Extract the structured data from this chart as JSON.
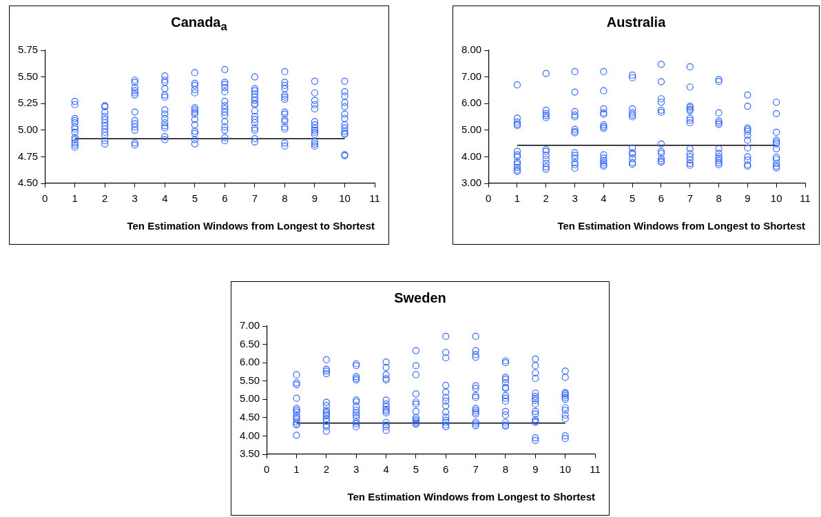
{
  "chart_data": [
    {
      "type": "scatter",
      "title": "Canada$_{a}$",
      "xlabel": "Ten Estimation Windows from Longest to Shortest",
      "xlim": [
        0,
        11
      ],
      "xticks": [
        0,
        1,
        2,
        3,
        4,
        5,
        6,
        7,
        8,
        9,
        10,
        11
      ],
      "ylim": [
        4.5,
        5.75
      ],
      "yticks": [
        {
          "value": 4.5,
          "label": "4.50"
        },
        {
          "value": 4.75,
          "label": "4.75"
        },
        {
          "value": 5,
          "label": "5.00"
        },
        {
          "value": 5.25,
          "label": "5.25"
        },
        {
          "value": 5.5,
          "label": "5.50"
        },
        {
          "value": 5.75,
          "label": "5.75"
        }
      ],
      "grid": false,
      "legend": false,
      "marker": "circle",
      "series": [
        {
          "color": "#3366ff",
          "x": [
            1,
            1,
            1,
            1,
            1,
            1,
            1,
            1,
            1,
            1,
            1,
            1,
            1,
            2,
            2,
            2,
            2,
            2,
            2,
            2,
            2,
            2,
            2,
            2,
            2,
            3,
            3,
            3,
            3,
            3,
            3,
            3,
            3,
            3,
            3,
            3,
            3,
            3,
            4,
            4,
            4,
            4,
            4,
            4,
            4,
            4,
            4,
            4,
            4,
            4,
            4,
            4,
            5,
            5,
            5,
            5,
            5,
            5,
            5,
            5,
            5,
            5,
            5,
            5,
            5,
            5,
            5,
            6,
            6,
            6,
            6,
            6,
            6,
            6,
            6,
            6,
            6,
            6,
            6,
            6,
            6,
            6,
            7,
            7,
            7,
            7,
            7,
            7,
            7,
            7,
            7,
            7,
            7,
            7,
            7,
            7,
            7,
            7,
            8,
            8,
            8,
            8,
            8,
            8,
            8,
            8,
            8,
            8,
            8,
            8,
            8,
            8,
            8,
            9,
            9,
            9,
            9,
            9,
            9,
            9,
            9,
            9,
            9,
            9,
            9,
            9,
            9,
            10,
            10,
            10,
            10,
            10,
            10,
            10,
            10,
            10,
            10,
            10,
            10,
            10,
            10
          ],
          "values": [
            5.27,
            5.24,
            5.11,
            5.09,
            5.07,
            5.03,
            5.01,
            4.98,
            4.93,
            4.91,
            4.88,
            4.86,
            4.84,
            5.23,
            5.22,
            5.17,
            5.13,
            5.1,
            5.07,
            5.04,
            5.01,
            4.98,
            4.95,
            4.9,
            4.87,
            5.47,
            5.45,
            5.4,
            5.37,
            5.35,
            5.33,
            5.17,
            5.09,
            5.06,
            5.03,
            5.0,
            4.88,
            4.86,
            5.51,
            5.47,
            5.45,
            5.39,
            5.33,
            5.31,
            5.19,
            5.15,
            5.11,
            5.07,
            5.04,
            5.02,
            4.94,
            4.91,
            5.54,
            5.44,
            5.42,
            5.38,
            5.35,
            5.21,
            5.19,
            5.17,
            5.15,
            5.1,
            5.05,
            4.99,
            4.97,
            4.91,
            4.87,
            5.57,
            5.45,
            5.43,
            5.4,
            5.36,
            5.27,
            5.23,
            5.2,
            5.17,
            5.14,
            5.08,
            5.03,
            5.0,
            4.93,
            4.9,
            5.5,
            5.39,
            5.37,
            5.34,
            5.31,
            5.28,
            5.25,
            5.24,
            5.18,
            5.13,
            5.1,
            5.07,
            5.02,
            5.0,
            4.92,
            4.89,
            5.55,
            5.45,
            5.42,
            5.39,
            5.33,
            5.31,
            5.29,
            5.17,
            5.15,
            5.1,
            5.08,
            5.03,
            5.01,
            4.88,
            4.85,
            5.46,
            5.35,
            5.28,
            5.24,
            5.2,
            5.08,
            5.05,
            5.02,
            5.0,
            4.98,
            4.96,
            4.89,
            4.87,
            4.85,
            5.46,
            5.36,
            5.32,
            5.26,
            5.22,
            5.15,
            5.11,
            5.05,
            5.02,
            4.99,
            4.97,
            4.96,
            4.77,
            4.76
          ]
        },
        {
          "type": "line",
          "marker": "none",
          "color": "#000000",
          "x": [
            1,
            10
          ],
          "values": [
            4.92,
            4.92
          ]
        }
      ]
    },
    {
      "type": "scatter",
      "title": "Australia",
      "xlabel": "Ten Estimation Windows from Longest to Shortest",
      "xlim": [
        0,
        11
      ],
      "xticks": [
        0,
        1,
        2,
        3,
        4,
        5,
        6,
        7,
        8,
        9,
        10,
        11
      ],
      "ylim": [
        3,
        8
      ],
      "yticks": [
        {
          "value": 3,
          "label": "3.00"
        },
        {
          "value": 4,
          "label": "4.00"
        },
        {
          "value": 5,
          "label": "5.00"
        },
        {
          "value": 6,
          "label": "6.00"
        },
        {
          "value": 7,
          "label": "7.00"
        },
        {
          "value": 8,
          "label": "8.00"
        }
      ],
      "grid": false,
      "legend": false,
      "marker": "circle",
      "series": [
        {
          "color": "#3366ff",
          "x": [
            1,
            1,
            1,
            1,
            1,
            1,
            1,
            1,
            1,
            1,
            1,
            1,
            1,
            2,
            2,
            2,
            2,
            2,
            2,
            2,
            2,
            2,
            2,
            2,
            2,
            3,
            3,
            3,
            3,
            3,
            3,
            3,
            3,
            3,
            3,
            3,
            3,
            3,
            3,
            4,
            4,
            4,
            4,
            4,
            4,
            4,
            4,
            4,
            4,
            4,
            4,
            4,
            4,
            5,
            5,
            5,
            5,
            5,
            5,
            5,
            5,
            5,
            5,
            5,
            5,
            6,
            6,
            6,
            6,
            6,
            6,
            6,
            6,
            6,
            6,
            6,
            6,
            7,
            7,
            7,
            7,
            7,
            7,
            7,
            7,
            7,
            7,
            7,
            7,
            7,
            7,
            7,
            8,
            8,
            8,
            8,
            8,
            8,
            8,
            8,
            8,
            8,
            8,
            8,
            8,
            9,
            9,
            9,
            9,
            9,
            9,
            9,
            9,
            9,
            9,
            9,
            9,
            10,
            10,
            10,
            10,
            10,
            10,
            10,
            10,
            10,
            10,
            10,
            10
          ],
          "values": [
            6.7,
            5.45,
            5.3,
            5.22,
            5.17,
            4.2,
            4.07,
            4.0,
            3.8,
            3.73,
            3.6,
            3.5,
            3.45,
            7.13,
            5.75,
            5.62,
            5.55,
            5.47,
            4.27,
            4.2,
            4.05,
            3.9,
            3.75,
            3.62,
            3.53,
            7.2,
            6.43,
            5.7,
            5.57,
            5.5,
            5.03,
            4.95,
            4.9,
            4.15,
            4.05,
            3.95,
            3.78,
            3.7,
            3.57,
            7.2,
            6.48,
            5.8,
            5.65,
            5.6,
            5.2,
            5.13,
            5.07,
            4.07,
            3.95,
            3.85,
            3.78,
            3.7,
            3.65,
            7.07,
            6.97,
            5.8,
            5.65,
            5.57,
            5.5,
            4.33,
            4.15,
            4.1,
            3.95,
            3.78,
            3.72,
            7.47,
            6.82,
            6.18,
            6.05,
            5.75,
            5.67,
            4.48,
            4.2,
            4.13,
            3.93,
            3.85,
            3.8,
            7.38,
            6.62,
            5.9,
            5.85,
            5.78,
            5.73,
            5.45,
            5.37,
            5.28,
            4.3,
            4.12,
            4.0,
            3.88,
            3.75,
            3.68,
            6.9,
            6.83,
            5.65,
            5.35,
            5.28,
            5.22,
            4.3,
            4.13,
            4.0,
            3.93,
            3.85,
            3.77,
            3.7,
            6.32,
            5.9,
            5.08,
            5.02,
            4.95,
            4.8,
            4.62,
            4.33,
            4.0,
            3.87,
            3.7,
            3.65,
            6.05,
            5.62,
            4.92,
            4.62,
            4.55,
            4.48,
            4.3,
            3.98,
            3.9,
            3.75,
            3.65,
            3.58
          ]
        },
        {
          "type": "line",
          "marker": "none",
          "color": "#000000",
          "x": [
            1,
            10
          ],
          "values": [
            4.43,
            4.43
          ]
        }
      ]
    },
    {
      "type": "scatter",
      "title": "Sweden",
      "xlabel": "Ten Estimation Windows from Longest to Shortest",
      "xlim": [
        0,
        11
      ],
      "xticks": [
        0,
        1,
        2,
        3,
        4,
        5,
        6,
        7,
        8,
        9,
        10,
        11
      ],
      "ylim": [
        3.5,
        7
      ],
      "yticks": [
        {
          "value": 3.5,
          "label": "3.50"
        },
        {
          "value": 4,
          "label": "4.00"
        },
        {
          "value": 4.5,
          "label": "4.50"
        },
        {
          "value": 5,
          "label": "5.00"
        },
        {
          "value": 5.5,
          "label": "5.50"
        },
        {
          "value": 6,
          "label": "6.00"
        },
        {
          "value": 6.5,
          "label": "6.50"
        },
        {
          "value": 7,
          "label": "7.00"
        }
      ],
      "grid": false,
      "legend": false,
      "marker": "circle",
      "series": [
        {
          "color": "#3366ff",
          "x": [
            1,
            1,
            1,
            1,
            1,
            1,
            1,
            1,
            1,
            1,
            1,
            1,
            1,
            1,
            2,
            2,
            2,
            2,
            2,
            2,
            2,
            2,
            2,
            2,
            2,
            2,
            2,
            2,
            2,
            3,
            3,
            3,
            3,
            3,
            3,
            3,
            3,
            3,
            3,
            3,
            3,
            3,
            3,
            3,
            4,
            4,
            4,
            4,
            4,
            4,
            4,
            4,
            4,
            4,
            4,
            4,
            4,
            4,
            4,
            5,
            5,
            5,
            5,
            5,
            5,
            5,
            5,
            5,
            5,
            5,
            5,
            6,
            6,
            6,
            6,
            6,
            6,
            6,
            6,
            6,
            6,
            6,
            6,
            6,
            6,
            7,
            7,
            7,
            7,
            7,
            7,
            7,
            7,
            7,
            7,
            7,
            7,
            7,
            7,
            7,
            8,
            8,
            8,
            8,
            8,
            8,
            8,
            8,
            8,
            8,
            8,
            8,
            8,
            8,
            8,
            9,
            9,
            9,
            9,
            9,
            9,
            9,
            9,
            9,
            9,
            9,
            9,
            9,
            9,
            9,
            9,
            10,
            10,
            10,
            10,
            10,
            10,
            10,
            10,
            10,
            10,
            10,
            10,
            10
          ],
          "values": [
            5.67,
            5.45,
            5.4,
            5.03,
            4.75,
            4.7,
            4.65,
            4.55,
            4.5,
            4.45,
            4.38,
            4.33,
            4.3,
            4.02,
            6.08,
            5.82,
            5.77,
            5.7,
            4.92,
            4.83,
            4.7,
            4.65,
            4.6,
            4.55,
            4.47,
            4.4,
            4.3,
            4.25,
            4.13,
            5.97,
            5.92,
            5.62,
            5.57,
            5.53,
            4.98,
            4.93,
            4.8,
            4.7,
            4.63,
            4.57,
            4.5,
            4.38,
            4.33,
            4.25,
            6.02,
            5.87,
            5.67,
            5.57,
            5.53,
            4.98,
            4.87,
            4.8,
            4.73,
            4.68,
            4.63,
            4.37,
            4.3,
            4.25,
            4.15,
            6.33,
            5.92,
            5.67,
            5.15,
            4.93,
            4.87,
            4.67,
            4.5,
            4.45,
            4.4,
            4.35,
            4.32,
            6.72,
            6.28,
            6.13,
            5.38,
            5.2,
            5.05,
            4.95,
            4.82,
            4.65,
            4.52,
            4.43,
            4.37,
            4.3,
            4.25,
            6.72,
            6.33,
            6.22,
            6.15,
            5.37,
            5.3,
            5.1,
            5.05,
            4.75,
            4.7,
            4.65,
            4.6,
            4.38,
            4.33,
            4.28,
            6.05,
            6.0,
            5.6,
            5.55,
            5.45,
            5.33,
            5.3,
            5.1,
            5.03,
            4.95,
            4.67,
            4.57,
            4.37,
            4.3,
            4.27,
            6.1,
            5.92,
            5.72,
            5.57,
            5.17,
            5.08,
            5.02,
            4.97,
            4.87,
            4.67,
            4.6,
            4.45,
            4.4,
            4.37,
            3.95,
            3.88,
            5.77,
            5.6,
            5.18,
            5.15,
            5.1,
            5.05,
            5.0,
            4.77,
            4.7,
            4.57,
            4.47,
            4.0,
            3.93
          ]
        },
        {
          "type": "line",
          "marker": "none",
          "color": "#000000",
          "x": [
            1,
            10
          ],
          "values": [
            4.35,
            4.35
          ]
        }
      ]
    }
  ]
}
